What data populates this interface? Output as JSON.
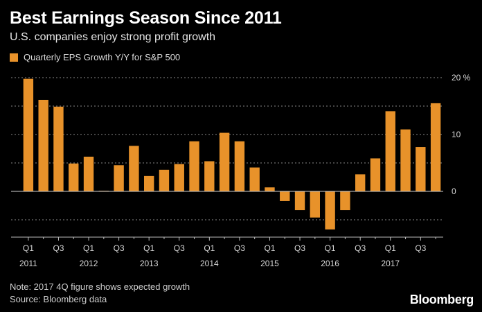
{
  "title": "Best Earnings Season Since 2011",
  "subtitle": "U.S. companies enjoy strong profit growth",
  "note": "Note: 2017 4Q figure shows expected growth",
  "source": "Source: Bloomberg data",
  "brand": "Bloomberg",
  "colors": {
    "bar": "#e8922a",
    "background": "#000000",
    "grid": "#8a8a8a"
  },
  "chart_data": {
    "type": "bar",
    "title": "Best Earnings Season Since 2011",
    "subtitle": "U.S. companies enjoy strong profit growth",
    "legend": "top-left",
    "grid": true,
    "ylim": [
      -8,
      20
    ],
    "y_ticks": [
      {
        "value": 20,
        "label": "20 %"
      },
      {
        "value": 10,
        "label": "10"
      },
      {
        "value": 0,
        "label": "0"
      }
    ],
    "y_gridlines": [
      20,
      15,
      10,
      5,
      0,
      -5
    ],
    "categories": [
      "2011 Q1",
      "2011 Q2",
      "2011 Q3",
      "2011 Q4",
      "2012 Q1",
      "2012 Q2",
      "2012 Q3",
      "2012 Q4",
      "2013 Q1",
      "2013 Q2",
      "2013 Q3",
      "2013 Q4",
      "2014 Q1",
      "2014 Q2",
      "2014 Q3",
      "2014 Q4",
      "2015 Q1",
      "2015 Q2",
      "2015 Q3",
      "2015 Q4",
      "2016 Q1",
      "2016 Q2",
      "2016 Q3",
      "2016 Q4",
      "2017 Q1",
      "2017 Q2",
      "2017 Q3",
      "2017 Q4"
    ],
    "x_tick_labels": [
      {
        "index": 0,
        "quarter": "Q1",
        "year": "2011"
      },
      {
        "index": 2,
        "quarter": "Q3",
        "year": ""
      },
      {
        "index": 4,
        "quarter": "Q1",
        "year": "2012"
      },
      {
        "index": 6,
        "quarter": "Q3",
        "year": ""
      },
      {
        "index": 8,
        "quarter": "Q1",
        "year": "2013"
      },
      {
        "index": 10,
        "quarter": "Q3",
        "year": ""
      },
      {
        "index": 12,
        "quarter": "Q1",
        "year": "2014"
      },
      {
        "index": 14,
        "quarter": "Q3",
        "year": ""
      },
      {
        "index": 16,
        "quarter": "Q1",
        "year": "2015"
      },
      {
        "index": 18,
        "quarter": "Q3",
        "year": ""
      },
      {
        "index": 20,
        "quarter": "Q1",
        "year": "2016"
      },
      {
        "index": 22,
        "quarter": "Q3",
        "year": ""
      },
      {
        "index": 24,
        "quarter": "Q1",
        "year": "2017"
      },
      {
        "index": 26,
        "quarter": "Q3",
        "year": ""
      }
    ],
    "series": [
      {
        "name": "Quarterly EPS Growth Y/Y for S&P 500",
        "values": [
          19.8,
          16.1,
          14.9,
          4.9,
          6.1,
          0.1,
          4.6,
          8.0,
          2.7,
          3.8,
          4.8,
          8.8,
          5.3,
          10.3,
          8.8,
          4.2,
          0.7,
          -1.7,
          -3.3,
          -4.6,
          -6.7,
          -3.3,
          3.0,
          5.8,
          14.1,
          10.9,
          7.8,
          15.5
        ]
      }
    ]
  }
}
